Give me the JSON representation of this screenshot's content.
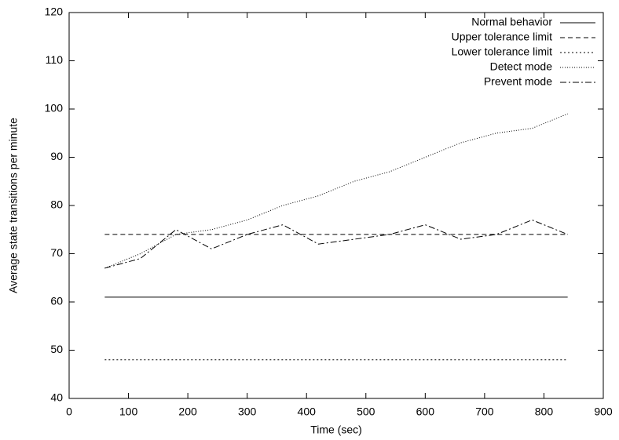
{
  "chart_data": {
    "type": "line",
    "x_label": "Time (sec)",
    "y_label": "Average state transitions per minute",
    "x": [
      60,
      120,
      180,
      240,
      300,
      360,
      420,
      480,
      540,
      600,
      660,
      720,
      780,
      840
    ],
    "series": [
      {
        "name": "Normal behavior",
        "color": "#000000",
        "dash": "none",
        "values": [
          61,
          61,
          61,
          61,
          61,
          61,
          61,
          61,
          61,
          61,
          61,
          61,
          61,
          61
        ]
      },
      {
        "name": "Upper tolerance limit",
        "color": "#000000",
        "dash": "6,4",
        "values": [
          74,
          74,
          74,
          74,
          74,
          74,
          74,
          74,
          74,
          74,
          74,
          74,
          74,
          74
        ]
      },
      {
        "name": "Lower tolerance limit",
        "color": "#000000",
        "dash": "2,3",
        "values": [
          48,
          48,
          48,
          48,
          48,
          48,
          48,
          48,
          48,
          48,
          48,
          48,
          48,
          48
        ]
      },
      {
        "name": "Detect mode",
        "color": "#000000",
        "dash": "1,2",
        "values": [
          67,
          70,
          74,
          75,
          77,
          80,
          82,
          85,
          87,
          90,
          93,
          95,
          96,
          99
        ]
      },
      {
        "name": "Prevent mode",
        "color": "#000000",
        "dash": "8,3,2,3",
        "values": [
          67,
          69,
          75,
          71,
          74,
          76,
          72,
          73,
          74,
          76,
          73,
          74,
          77,
          74
        ]
      }
    ],
    "xlim": [
      0,
      900
    ],
    "xticks": [
      0,
      100,
      200,
      300,
      400,
      500,
      600,
      700,
      800,
      900
    ],
    "ylim": [
      40,
      120
    ],
    "yticks": [
      40,
      50,
      60,
      70,
      80,
      90,
      100,
      110,
      120
    ],
    "grid": false,
    "legend": "top right"
  }
}
